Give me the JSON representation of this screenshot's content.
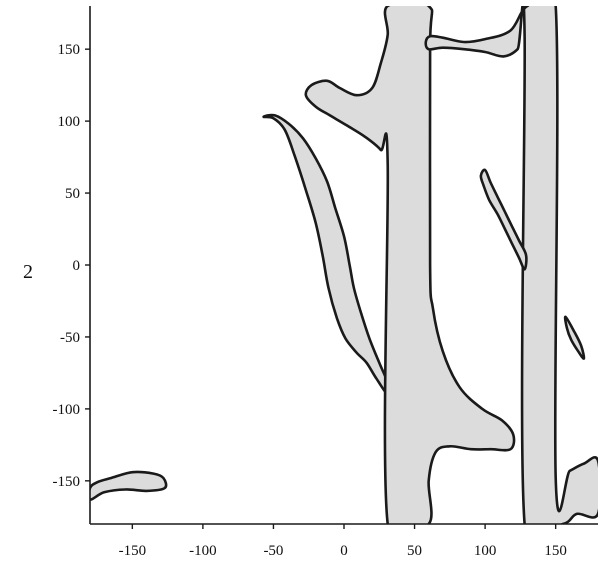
{
  "chart_data": {
    "type": "area",
    "title": "",
    "xlabel": "",
    "ylabel": "2",
    "xlim": [
      -180,
      180
    ],
    "ylim": [
      -180,
      180
    ],
    "x_ticks": [
      -150,
      -100,
      -50,
      0,
      50,
      100,
      150
    ],
    "y_ticks": [
      150,
      100,
      50,
      0,
      -50,
      -100,
      -150
    ],
    "grid": false,
    "style": {
      "fill": "#dcdcdc",
      "stroke": "#1a1a1a",
      "axis": "#1a1a1a"
    },
    "regions": [
      {
        "name": "left-strip",
        "points": [
          [
            -57,
            103
          ],
          [
            -50,
            102
          ],
          [
            -42,
            94
          ],
          [
            -35,
            76
          ],
          [
            -27,
            52
          ],
          [
            -20,
            29
          ],
          [
            -15,
            6
          ],
          [
            -11,
            -16
          ],
          [
            -5,
            -37
          ],
          [
            1,
            -51
          ],
          [
            9,
            -61
          ],
          [
            16,
            -68
          ],
          [
            23,
            -79
          ],
          [
            31,
            -90
          ],
          [
            31,
            -82
          ],
          [
            25,
            -68
          ],
          [
            18,
            -51
          ],
          [
            12,
            -33
          ],
          [
            7,
            -16
          ],
          [
            4,
            0
          ],
          [
            0,
            20
          ],
          [
            -6,
            39
          ],
          [
            -12,
            58
          ],
          [
            -20,
            74
          ],
          [
            -29,
            88
          ],
          [
            -39,
            98
          ],
          [
            -49,
            104
          ]
        ]
      },
      {
        "name": "central-region",
        "points": [
          [
            -27,
            118
          ],
          [
            -23,
            125
          ],
          [
            -12,
            128
          ],
          [
            -3,
            123
          ],
          [
            9,
            118
          ],
          [
            20,
            123
          ],
          [
            26,
            140
          ],
          [
            31,
            160
          ],
          [
            31,
            180
          ],
          [
            60,
            180
          ],
          [
            61,
            150
          ],
          [
            61,
            0
          ],
          [
            63,
            -30
          ],
          [
            70,
            -60
          ],
          [
            82,
            -85
          ],
          [
            98,
            -100
          ],
          [
            112,
            -108
          ],
          [
            120,
            -118
          ],
          [
            118,
            -128
          ],
          [
            104,
            -128
          ],
          [
            90,
            -128
          ],
          [
            75,
            -126
          ],
          [
            65,
            -130
          ],
          [
            60,
            -150
          ],
          [
            60,
            -180
          ],
          [
            31,
            -180
          ],
          [
            31,
            70
          ],
          [
            26,
            80
          ],
          [
            15,
            89
          ],
          [
            2,
            97
          ],
          [
            -10,
            104
          ],
          [
            -20,
            110
          ]
        ]
      },
      {
        "name": "top-right-strip",
        "points": [
          [
            58,
            155
          ],
          [
            61,
            159
          ],
          [
            70,
            158
          ],
          [
            85,
            155
          ],
          [
            100,
            157
          ],
          [
            118,
            163
          ],
          [
            130,
            180
          ],
          [
            150,
            180
          ],
          [
            150,
            -148
          ],
          [
            160,
            -143
          ],
          [
            170,
            -138
          ],
          [
            180,
            -136
          ],
          [
            180,
            -173
          ],
          [
            165,
            -173
          ],
          [
            155,
            -180
          ],
          [
            128,
            -180
          ],
          [
            128,
            160
          ],
          [
            123,
            150
          ],
          [
            113,
            145
          ],
          [
            100,
            148
          ],
          [
            85,
            150
          ],
          [
            70,
            151
          ],
          [
            60,
            150
          ]
        ]
      },
      {
        "name": "right-sliver",
        "points": [
          [
            97,
            62
          ],
          [
            100,
            66
          ],
          [
            104,
            57
          ],
          [
            109,
            47
          ],
          [
            114,
            37
          ],
          [
            119,
            27
          ],
          [
            124,
            17
          ],
          [
            129,
            7
          ],
          [
            128,
            -3
          ],
          [
            124,
            5
          ],
          [
            119,
            15
          ],
          [
            114,
            25
          ],
          [
            109,
            35
          ],
          [
            103,
            45
          ],
          [
            99,
            55
          ]
        ]
      },
      {
        "name": "bottom-right-sliver",
        "points": [
          [
            157,
            -36
          ],
          [
            163,
            -46
          ],
          [
            168,
            -56
          ],
          [
            170,
            -65
          ],
          [
            166,
            -60
          ],
          [
            161,
            -52
          ],
          [
            158,
            -44
          ]
        ]
      },
      {
        "name": "bottom-left-blob",
        "points": [
          [
            -180,
            -155
          ],
          [
            -175,
            -151
          ],
          [
            -165,
            -148
          ],
          [
            -150,
            -144
          ],
          [
            -135,
            -145
          ],
          [
            -128,
            -148
          ],
          [
            -127,
            -155
          ],
          [
            -140,
            -157
          ],
          [
            -155,
            -156
          ],
          [
            -170,
            -158
          ],
          [
            -180,
            -163
          ]
        ]
      }
    ]
  }
}
